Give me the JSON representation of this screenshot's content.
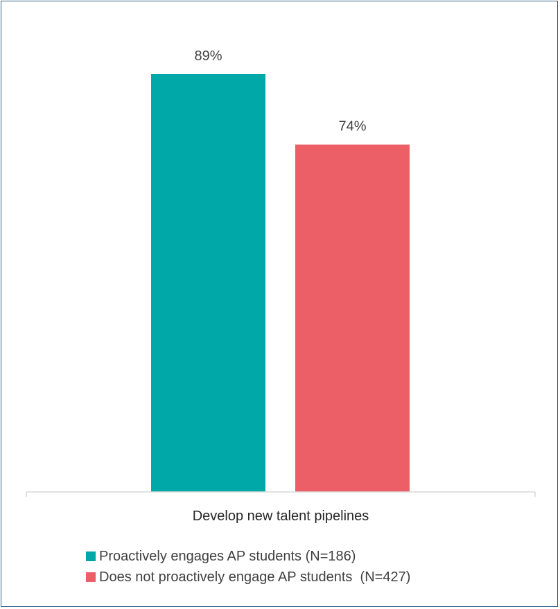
{
  "chart_data": {
    "type": "bar",
    "title": "",
    "xlabel": "",
    "ylabel": "",
    "ylim": [
      0,
      100
    ],
    "grid": false,
    "legend_position": "bottom-left",
    "categories": [
      "Develop new talent pipelines"
    ],
    "series": [
      {
        "name": "Proactively engages AP students (N=186)",
        "values": [
          89
        ],
        "data_labels": [
          "89%"
        ],
        "color": "#00a8a8"
      },
      {
        "name": "Does not proactively engage AP students  (N=427)",
        "values": [
          74
        ],
        "data_labels": [
          "74%"
        ],
        "color": "#ec5f67"
      }
    ]
  },
  "colors": {
    "border": "#2f5f8a",
    "axis": "#d9d9d9",
    "label_text": "#404040"
  }
}
